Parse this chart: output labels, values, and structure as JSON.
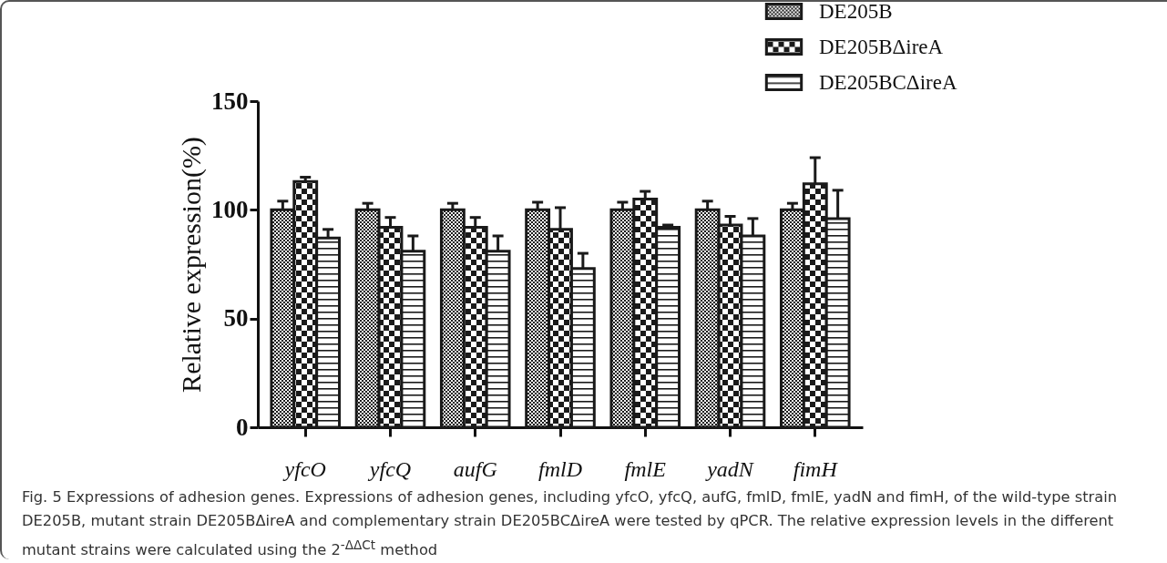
{
  "chart_data": {
    "type": "bar",
    "categories": [
      "yfcO",
      "yfcQ",
      "aufG",
      "fmlD",
      "fmlE",
      "yadN",
      "fimH"
    ],
    "series": [
      {
        "name": "DE205B",
        "color": "#1a1a1a",
        "values": [
          100,
          100,
          100,
          100,
          100,
          100,
          100
        ],
        "errors": [
          4,
          3,
          3,
          3.5,
          3.5,
          4,
          3
        ]
      },
      {
        "name": "DE205BΔireA",
        "color": "#1a1a1a",
        "values": [
          113,
          92,
          92,
          91,
          105,
          93,
          112
        ],
        "errors": [
          2,
          4.5,
          4.5,
          10,
          3.5,
          4,
          12
        ]
      },
      {
        "name": "DE205BCΔireA",
        "color": "#1a1a1a",
        "values": [
          87,
          81,
          81,
          73,
          92,
          88,
          96
        ],
        "errors": [
          4,
          7,
          7,
          7,
          1,
          8,
          13
        ]
      }
    ],
    "ylabel": "Relative expression(%)",
    "ylim": [
      0,
      150
    ],
    "yticks": [
      0,
      50,
      100,
      150
    ],
    "legend": "top right",
    "annotations": [
      "Fig. 5 Expressions of adhesion genes. Expressions of adhesion genes, including yfcO, yfcQ, aufG, fmlD, fmlE, yadN and fimH, of the wild-type strain DE205B, mutant strain DE205BΔireA and complementary strain DE205BCΔireA were tested by qPCR. The relative expression levels in the different mutant strains were calculated using the 2$^{-ΔΔCt}$ method"
    ]
  }
}
